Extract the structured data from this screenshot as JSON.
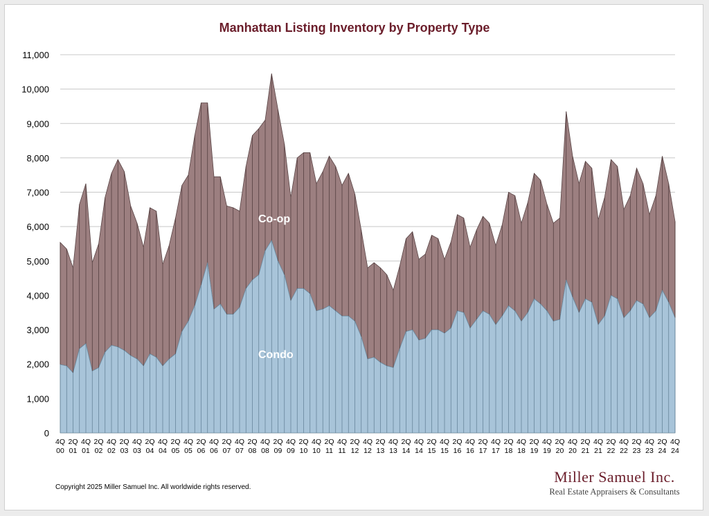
{
  "title": "Manhattan Listing Inventory by Property Type",
  "copyright": "Copyright 2025 Miller Samuel Inc.  All worldwide rights reserved.",
  "brand": {
    "name": "Miller Samuel Inc.",
    "tagline": "Real Estate Appraisers & Consultants"
  },
  "colors": {
    "title": "#6b1e2b",
    "condo": "#a8c4d9",
    "coop": "#9c7f80",
    "gridline": "#c8c8c8",
    "brand": "#6b1e2b"
  },
  "chart_data": {
    "type": "area",
    "stacked": true,
    "title": "Manhattan Listing Inventory by Property Type",
    "ylim": [
      0,
      11000
    ],
    "yticks": [
      0,
      1000,
      2000,
      3000,
      4000,
      5000,
      6000,
      7000,
      8000,
      9000,
      10000,
      11000
    ],
    "ytick_labels": [
      "0",
      "1,000",
      "2,000",
      "3,000",
      "4,000",
      "5,000",
      "6,000",
      "7,000",
      "8,000",
      "9,000",
      "10,000",
      "11,000"
    ],
    "grid": true,
    "x": [
      "4Q00",
      "1Q01",
      "2Q01",
      "3Q01",
      "4Q01",
      "1Q02",
      "2Q02",
      "3Q02",
      "4Q02",
      "1Q03",
      "2Q03",
      "3Q03",
      "4Q03",
      "1Q04",
      "2Q04",
      "3Q04",
      "4Q04",
      "1Q05",
      "2Q05",
      "3Q05",
      "4Q05",
      "1Q06",
      "2Q06",
      "3Q06",
      "4Q06",
      "1Q07",
      "2Q07",
      "3Q07",
      "4Q07",
      "1Q08",
      "2Q08",
      "3Q08",
      "4Q08",
      "1Q09",
      "2Q09",
      "3Q09",
      "4Q09",
      "1Q10",
      "2Q10",
      "3Q10",
      "4Q10",
      "1Q11",
      "2Q11",
      "3Q11",
      "4Q11",
      "1Q12",
      "2Q12",
      "3Q12",
      "4Q12",
      "1Q13",
      "2Q13",
      "3Q13",
      "4Q13",
      "1Q14",
      "2Q14",
      "3Q14",
      "4Q14",
      "1Q15",
      "2Q15",
      "3Q15",
      "4Q15",
      "1Q16",
      "2Q16",
      "3Q16",
      "4Q16",
      "1Q17",
      "2Q17",
      "3Q17",
      "4Q17",
      "1Q18",
      "2Q18",
      "3Q18",
      "4Q18",
      "1Q19",
      "2Q19",
      "3Q19",
      "4Q19",
      "1Q20",
      "2Q20",
      "3Q20",
      "4Q20",
      "1Q21",
      "2Q21",
      "3Q21",
      "4Q21",
      "1Q22",
      "2Q22",
      "3Q22",
      "4Q22",
      "1Q23",
      "2Q23",
      "3Q23",
      "4Q23",
      "1Q24",
      "2Q24",
      "3Q24",
      "4Q24"
    ],
    "x_tick_labels": [
      {
        "q": "4Q",
        "y": "00"
      },
      {
        "q": "2Q",
        "y": "01"
      },
      {
        "q": "4Q",
        "y": "01"
      },
      {
        "q": "2Q",
        "y": "02"
      },
      {
        "q": "4Q",
        "y": "02"
      },
      {
        "q": "2Q",
        "y": "03"
      },
      {
        "q": "4Q",
        "y": "03"
      },
      {
        "q": "2Q",
        "y": "04"
      },
      {
        "q": "4Q",
        "y": "04"
      },
      {
        "q": "2Q",
        "y": "05"
      },
      {
        "q": "4Q",
        "y": "05"
      },
      {
        "q": "2Q",
        "y": "06"
      },
      {
        "q": "4Q",
        "y": "06"
      },
      {
        "q": "2Q",
        "y": "07"
      },
      {
        "q": "4Q",
        "y": "07"
      },
      {
        "q": "2Q",
        "y": "08"
      },
      {
        "q": "4Q",
        "y": "08"
      },
      {
        "q": "2Q",
        "y": "09"
      },
      {
        "q": "4Q",
        "y": "09"
      },
      {
        "q": "2Q",
        "y": "10"
      },
      {
        "q": "4Q",
        "y": "10"
      },
      {
        "q": "2Q",
        "y": "11"
      },
      {
        "q": "4Q",
        "y": "11"
      },
      {
        "q": "2Q",
        "y": "12"
      },
      {
        "q": "4Q",
        "y": "12"
      },
      {
        "q": "2Q",
        "y": "13"
      },
      {
        "q": "4Q",
        "y": "13"
      },
      {
        "q": "2Q",
        "y": "14"
      },
      {
        "q": "4Q",
        "y": "14"
      },
      {
        "q": "2Q",
        "y": "15"
      },
      {
        "q": "4Q",
        "y": "15"
      },
      {
        "q": "2Q",
        "y": "16"
      },
      {
        "q": "4Q",
        "y": "16"
      },
      {
        "q": "2Q",
        "y": "17"
      },
      {
        "q": "4Q",
        "y": "17"
      },
      {
        "q": "2Q",
        "y": "18"
      },
      {
        "q": "4Q",
        "y": "18"
      },
      {
        "q": "2Q",
        "y": "19"
      },
      {
        "q": "4Q",
        "y": "19"
      },
      {
        "q": "2Q",
        "y": "20"
      },
      {
        "q": "4Q",
        "y": "20"
      },
      {
        "q": "2Q",
        "y": "21"
      },
      {
        "q": "4Q",
        "y": "21"
      },
      {
        "q": "2Q",
        "y": "22"
      },
      {
        "q": "4Q",
        "y": "22"
      },
      {
        "q": "2Q",
        "y": "23"
      },
      {
        "q": "4Q",
        "y": "23"
      },
      {
        "q": "2Q",
        "y": "24"
      },
      {
        "q": "4Q",
        "y": "24"
      }
    ],
    "series": [
      {
        "name": "Condo",
        "values": [
          1990,
          1950,
          1750,
          2450,
          2600,
          1800,
          1900,
          2350,
          2550,
          2500,
          2400,
          2250,
          2150,
          1950,
          2300,
          2200,
          1950,
          2150,
          2300,
          2950,
          3250,
          3700,
          4300,
          4950,
          3600,
          3750,
          3450,
          3450,
          3650,
          4200,
          4450,
          4600,
          5300,
          5600,
          5000,
          4600,
          3850,
          4200,
          4200,
          4050,
          3550,
          3600,
          3700,
          3550,
          3400,
          3400,
          3250,
          2800,
          2150,
          2200,
          2050,
          1950,
          1900,
          2450,
          2950,
          3000,
          2700,
          2750,
          3000,
          3000,
          2900,
          3050,
          3550,
          3500,
          3050,
          3300,
          3550,
          3450,
          3150,
          3400,
          3700,
          3550,
          3250,
          3500,
          3900,
          3750,
          3550,
          3250,
          3300,
          4450,
          3950,
          3500,
          3900,
          3800,
          3150,
          3400,
          4000,
          3900,
          3350,
          3550,
          3850,
          3750,
          3350,
          3550,
          4150,
          3800,
          3350
        ]
      },
      {
        "name": "Co-op",
        "values": [
          3550,
          3400,
          3050,
          4200,
          4650,
          3150,
          3600,
          4500,
          5000,
          5450,
          5200,
          4350,
          3950,
          3450,
          4250,
          4250,
          2950,
          3300,
          3950,
          4250,
          4250,
          4950,
          5300,
          4650,
          3850,
          3700,
          3150,
          3100,
          2800,
          3550,
          4200,
          4250,
          3800,
          4850,
          4400,
          3800,
          3000,
          3800,
          3950,
          4100,
          3700,
          4000,
          4350,
          4200,
          3800,
          4150,
          3700,
          3100,
          2650,
          2750,
          2750,
          2650,
          2250,
          2400,
          2700,
          2850,
          2350,
          2450,
          2750,
          2650,
          2150,
          2500,
          2800,
          2750,
          2350,
          2600,
          2750,
          2650,
          2300,
          2650,
          3300,
          3350,
          2850,
          3200,
          3650,
          3600,
          3100,
          2850,
          2950,
          4900,
          4100,
          3750,
          4000,
          3900,
          3050,
          3450,
          3950,
          3850,
          3150,
          3350,
          3850,
          3500,
          3000,
          3350,
          3900,
          3450,
          2800
        ]
      }
    ],
    "series_labels": {
      "coop": "Co-op",
      "condo": "Condo"
    }
  }
}
